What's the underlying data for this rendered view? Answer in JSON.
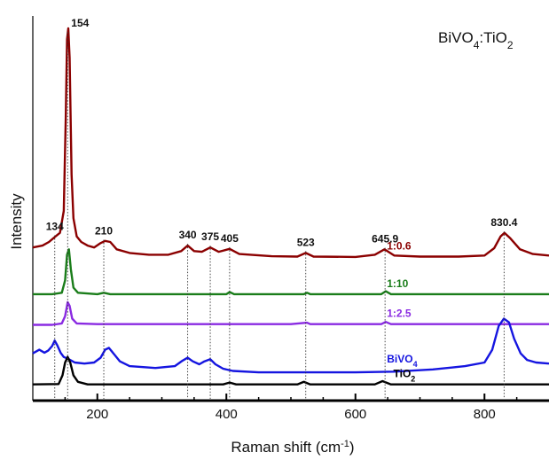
{
  "chart_data": {
    "type": "line",
    "title": "BiVO4:TiO2",
    "title_main": "BiVO",
    "title_sub1": "4",
    "title_mid": ":TiO",
    "title_sub2": "2",
    "xlabel": "Raman shift (cm",
    "xlabel_sup": "-1",
    "xlabel_end": ")",
    "ylabel": "Intensity",
    "xlim": [
      100,
      900
    ],
    "ylim": [
      0,
      1
    ],
    "x_ticks": [
      200,
      400,
      600,
      800
    ],
    "x_tick_labels": [
      "200",
      "400",
      "600",
      "800"
    ],
    "peak_labels": [
      {
        "x": 134,
        "text": "134"
      },
      {
        "x": 154,
        "text": "154"
      },
      {
        "x": 210,
        "text": "210"
      },
      {
        "x": 340,
        "text": "340"
      },
      {
        "x": 375,
        "text": "375"
      },
      {
        "x": 405,
        "text": "405"
      },
      {
        "x": 523,
        "text": "523"
      },
      {
        "x": 645.9,
        "text": "645.9"
      },
      {
        "x": 830.4,
        "text": "830.4"
      }
    ],
    "series": [
      {
        "name": "1:0.6",
        "color": "#8b0000",
        "label_x": 690,
        "points": [
          [
            100,
            0.4
          ],
          [
            115,
            0.405
          ],
          [
            125,
            0.415
          ],
          [
            135,
            0.43
          ],
          [
            142,
            0.44
          ],
          [
            148,
            0.5
          ],
          [
            151,
            0.75
          ],
          [
            153,
            0.97
          ],
          [
            155,
            1.0
          ],
          [
            157,
            0.92
          ],
          [
            160,
            0.6
          ],
          [
            163,
            0.48
          ],
          [
            168,
            0.43
          ],
          [
            175,
            0.415
          ],
          [
            185,
            0.405
          ],
          [
            195,
            0.4
          ],
          [
            205,
            0.412
          ],
          [
            212,
            0.418
          ],
          [
            220,
            0.415
          ],
          [
            230,
            0.395
          ],
          [
            250,
            0.385
          ],
          [
            280,
            0.38
          ],
          [
            310,
            0.38
          ],
          [
            330,
            0.39
          ],
          [
            340,
            0.405
          ],
          [
            350,
            0.39
          ],
          [
            362,
            0.388
          ],
          [
            375,
            0.4
          ],
          [
            388,
            0.388
          ],
          [
            405,
            0.396
          ],
          [
            420,
            0.382
          ],
          [
            470,
            0.376
          ],
          [
            510,
            0.375
          ],
          [
            523,
            0.385
          ],
          [
            535,
            0.375
          ],
          [
            600,
            0.374
          ],
          [
            630,
            0.38
          ],
          [
            645,
            0.395
          ],
          [
            660,
            0.378
          ],
          [
            700,
            0.375
          ],
          [
            760,
            0.375
          ],
          [
            800,
            0.378
          ],
          [
            815,
            0.398
          ],
          [
            825,
            0.43
          ],
          [
            831,
            0.44
          ],
          [
            840,
            0.425
          ],
          [
            855,
            0.395
          ],
          [
            875,
            0.382
          ],
          [
            900,
            0.378
          ]
        ]
      },
      {
        "name": "1:10",
        "color": "#1a7d1a",
        "label_x": 690,
        "points": [
          [
            100,
            0.272
          ],
          [
            130,
            0.272
          ],
          [
            145,
            0.276
          ],
          [
            150,
            0.31
          ],
          [
            153,
            0.38
          ],
          [
            156,
            0.395
          ],
          [
            159,
            0.34
          ],
          [
            163,
            0.29
          ],
          [
            170,
            0.276
          ],
          [
            200,
            0.272
          ],
          [
            210,
            0.276
          ],
          [
            220,
            0.272
          ],
          [
            300,
            0.272
          ],
          [
            400,
            0.272
          ],
          [
            405,
            0.278
          ],
          [
            412,
            0.272
          ],
          [
            520,
            0.272
          ],
          [
            525,
            0.276
          ],
          [
            530,
            0.272
          ],
          [
            640,
            0.272
          ],
          [
            647,
            0.28
          ],
          [
            655,
            0.272
          ],
          [
            900,
            0.272
          ]
        ]
      },
      {
        "name": "1:2.5",
        "color": "#8a2be2",
        "label_x": 690,
        "points": [
          [
            100,
            0.188
          ],
          [
            130,
            0.188
          ],
          [
            145,
            0.192
          ],
          [
            150,
            0.212
          ],
          [
            154,
            0.25
          ],
          [
            157,
            0.24
          ],
          [
            161,
            0.205
          ],
          [
            168,
            0.192
          ],
          [
            200,
            0.19
          ],
          [
            300,
            0.19
          ],
          [
            400,
            0.19
          ],
          [
            500,
            0.19
          ],
          [
            525,
            0.194
          ],
          [
            530,
            0.19
          ],
          [
            640,
            0.19
          ],
          [
            647,
            0.196
          ],
          [
            655,
            0.19
          ],
          [
            800,
            0.19
          ],
          [
            900,
            0.19
          ]
        ]
      },
      {
        "name": "BiVO4",
        "name_main": "BiVO",
        "name_sub": "4",
        "color": "#1515e0",
        "label_x": 690,
        "points": [
          [
            100,
            0.11
          ],
          [
            110,
            0.12
          ],
          [
            118,
            0.112
          ],
          [
            124,
            0.118
          ],
          [
            130,
            0.13
          ],
          [
            134,
            0.145
          ],
          [
            138,
            0.132
          ],
          [
            143,
            0.112
          ],
          [
            148,
            0.1
          ],
          [
            155,
            0.095
          ],
          [
            165,
            0.085
          ],
          [
            180,
            0.082
          ],
          [
            195,
            0.085
          ],
          [
            205,
            0.098
          ],
          [
            212,
            0.12
          ],
          [
            218,
            0.125
          ],
          [
            225,
            0.11
          ],
          [
            235,
            0.088
          ],
          [
            250,
            0.075
          ],
          [
            290,
            0.07
          ],
          [
            320,
            0.075
          ],
          [
            332,
            0.09
          ],
          [
            340,
            0.098
          ],
          [
            348,
            0.088
          ],
          [
            358,
            0.08
          ],
          [
            366,
            0.088
          ],
          [
            375,
            0.094
          ],
          [
            383,
            0.08
          ],
          [
            395,
            0.068
          ],
          [
            410,
            0.062
          ],
          [
            450,
            0.058
          ],
          [
            520,
            0.058
          ],
          [
            600,
            0.058
          ],
          [
            660,
            0.06
          ],
          [
            720,
            0.066
          ],
          [
            770,
            0.075
          ],
          [
            800,
            0.085
          ],
          [
            812,
            0.12
          ],
          [
            822,
            0.185
          ],
          [
            830,
            0.205
          ],
          [
            838,
            0.195
          ],
          [
            846,
            0.15
          ],
          [
            856,
            0.11
          ],
          [
            866,
            0.092
          ],
          [
            880,
            0.085
          ],
          [
            900,
            0.082
          ]
        ]
      },
      {
        "name": "TiO2",
        "name_main": "TiO",
        "name_sub": "2",
        "color": "#000000",
        "label_x": 700,
        "points": [
          [
            100,
            0.025
          ],
          [
            140,
            0.026
          ],
          [
            146,
            0.05
          ],
          [
            150,
            0.085
          ],
          [
            154,
            0.1
          ],
          [
            158,
            0.085
          ],
          [
            163,
            0.05
          ],
          [
            170,
            0.032
          ],
          [
            185,
            0.025
          ],
          [
            300,
            0.025
          ],
          [
            395,
            0.025
          ],
          [
            405,
            0.03
          ],
          [
            415,
            0.025
          ],
          [
            510,
            0.025
          ],
          [
            520,
            0.032
          ],
          [
            530,
            0.025
          ],
          [
            630,
            0.025
          ],
          [
            642,
            0.034
          ],
          [
            655,
            0.025
          ],
          [
            900,
            0.025
          ]
        ]
      }
    ]
  }
}
